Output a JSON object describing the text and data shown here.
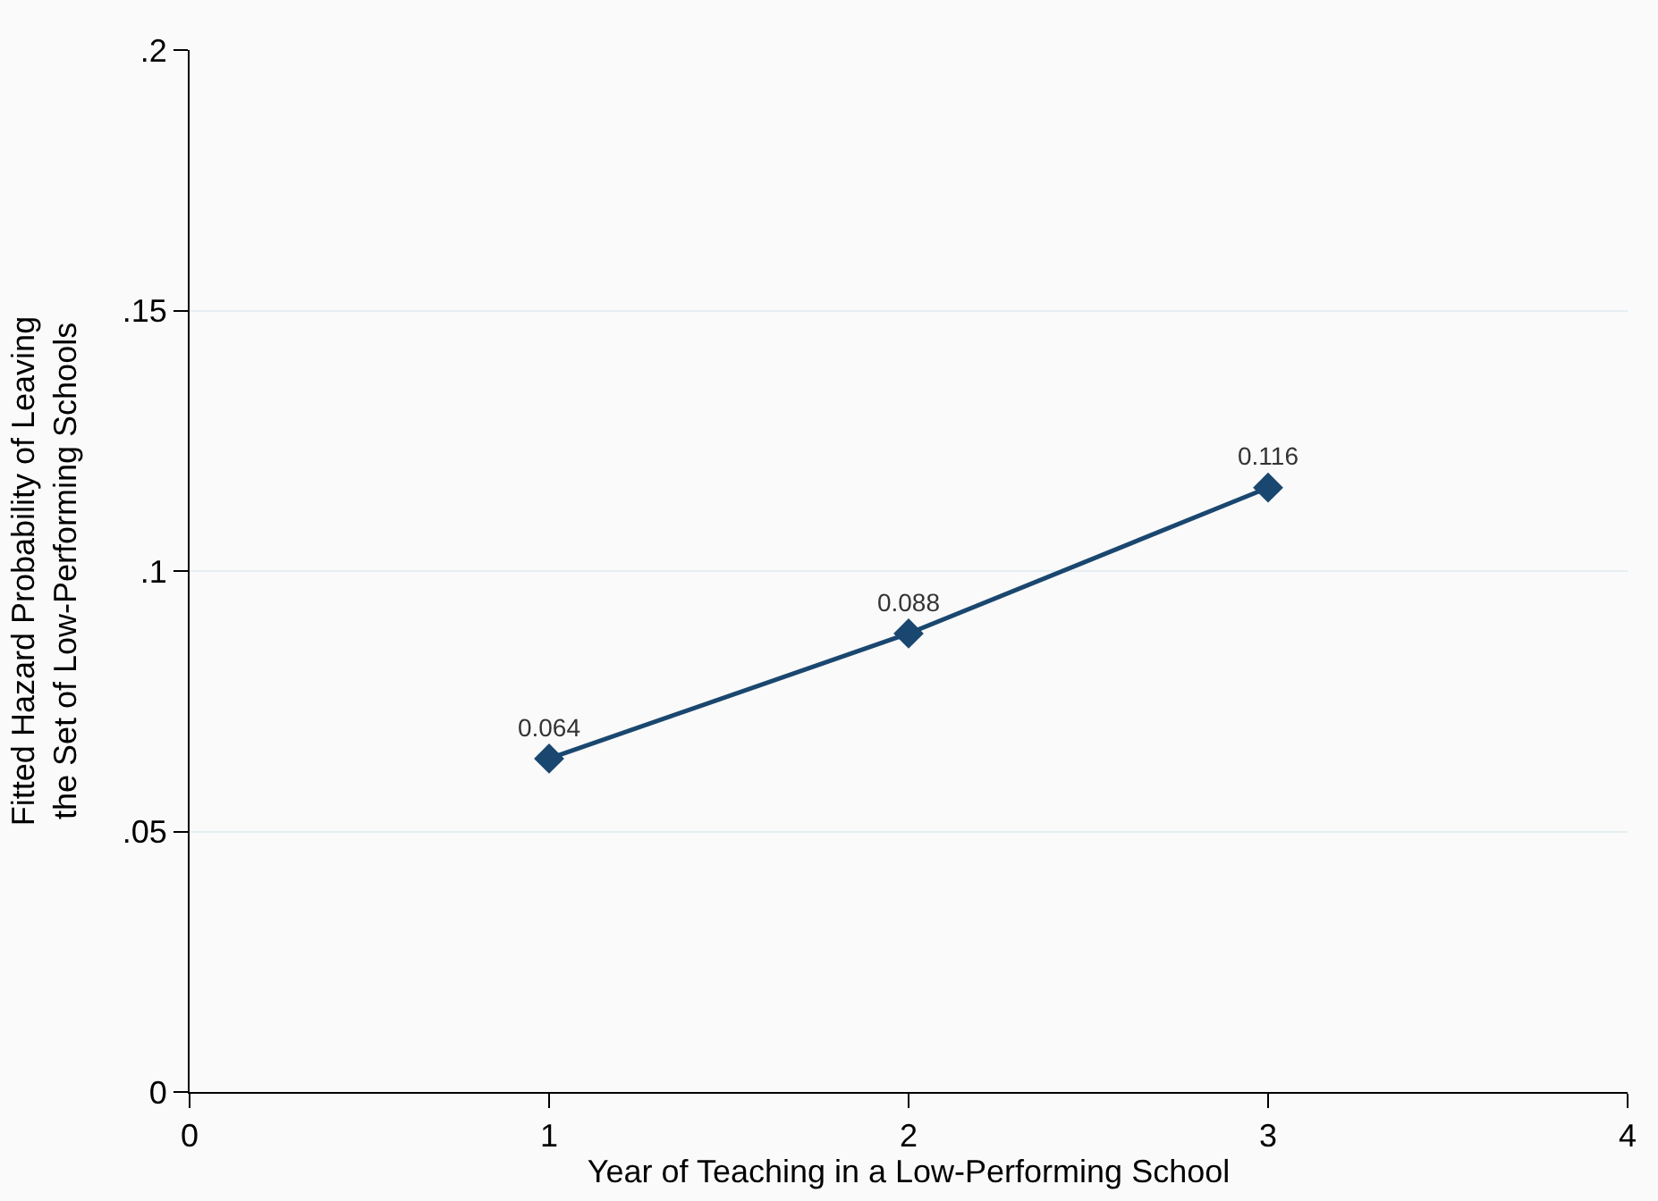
{
  "chart_data": {
    "type": "line",
    "xlabel": "Year of Teaching in a Low-Performing School",
    "ylabel": "Fitted Hazard Probability of Leaving\nthe Set of Low-Performing Schools",
    "x": [
      1,
      2,
      3
    ],
    "series": [
      {
        "color": "#1a476f",
        "values": [
          0.064,
          0.088,
          0.116
        ]
      }
    ],
    "xlim": [
      0,
      4
    ],
    "xticks": [
      0,
      1,
      2,
      3,
      4
    ],
    "ylim": [
      0,
      0.2
    ],
    "yticks": [
      {
        "value": 0,
        "label": "0"
      },
      {
        "value": 0.05,
        "label": ".05"
      },
      {
        "value": 0.1,
        "label": ".1"
      },
      {
        "value": 0.15,
        "label": ".15"
      },
      {
        "value": 0.2,
        "label": ".2"
      }
    ],
    "grid": "y",
    "legend": false,
    "marker": "diamond",
    "line_style": "solid",
    "data_labels": true
  }
}
